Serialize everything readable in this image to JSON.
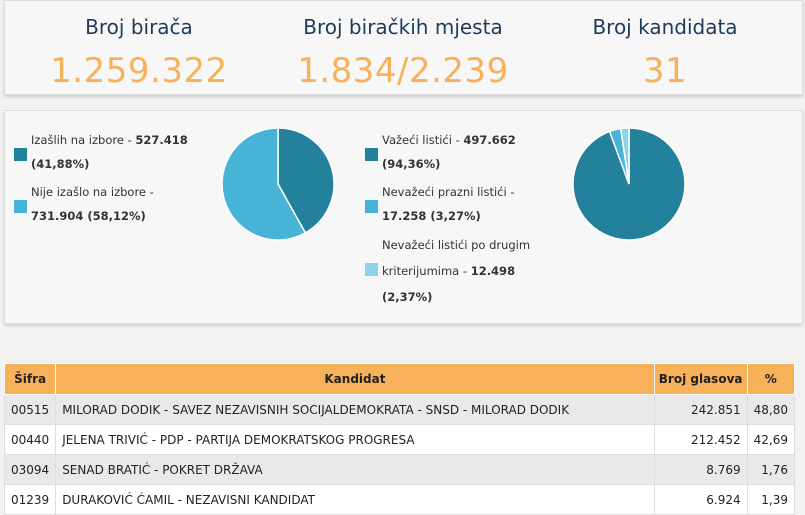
{
  "stats": {
    "voters_label": "Broj birača",
    "voters_value": "1.259.322",
    "stations_label": "Broj biračkih mjesta",
    "stations_value": "1.834/2.239",
    "candidates_label": "Broj kandidata",
    "candidates_value": "31"
  },
  "turnout": {
    "turned_out_label": "Izašlih na izbore - ",
    "turned_out_value": "527.418",
    "turned_out_pct": "(41,88%)",
    "not_turned_out_label": "Nije izašlo na izbore - ",
    "not_turned_out_value": "731.904 (58,12%)"
  },
  "ballots": {
    "valid_label": "Važeći listići - ",
    "valid_value": "497.662",
    "valid_pct": "(94,36%)",
    "invalid_empty_label": "Nevažeći prazni listići - ",
    "invalid_empty_value": "17.258 (3,27%)",
    "invalid_other_label1": "Nevažeći listići po drugim",
    "invalid_other_label2": "kriterijumima - ",
    "invalid_other_value": "12.498",
    "invalid_other_pct": "(2,37%)"
  },
  "colors": {
    "dark_teal": "#23819c",
    "mid_blue": "#47b3d6",
    "light_blue": "#8fd3ea",
    "orange": "#f7b15b",
    "navy": "#1f3b5a"
  },
  "chart_data": [
    {
      "type": "pie",
      "categories": [
        "Izašlih na izbore",
        "Nije izašlo na izbore"
      ],
      "values": [
        41.88,
        58.12
      ]
    },
    {
      "type": "pie",
      "categories": [
        "Važeći listići",
        "Nevažeći prazni listići",
        "Nevažeći listići po drugim kriterijumima"
      ],
      "values": [
        94.36,
        3.27,
        2.37
      ]
    }
  ],
  "table": {
    "headers": [
      "Šifra",
      "Kandidat",
      "Broj glasova",
      "%"
    ],
    "rows": [
      [
        "00515",
        "MILORAD DODIK - SAVEZ NEZAVISNIH SOCIJALDEMOKRATA - SNSD - MILORAD DODIK",
        "242.851",
        "48,80"
      ],
      [
        "00440",
        "JELENA TRIVIĆ - PDP - PARTIJA DEMOKRATSKOG PROGRESA",
        "212.452",
        "42,69"
      ],
      [
        "03094",
        "SENAD BRATIĆ - POKRET DRŽAVA",
        "8.769",
        "1,76"
      ],
      [
        "01239",
        "DURAKOVIĆ ĆAMIL - NEZAVISNI KANDIDAT",
        "6.924",
        "1,39"
      ]
    ]
  }
}
